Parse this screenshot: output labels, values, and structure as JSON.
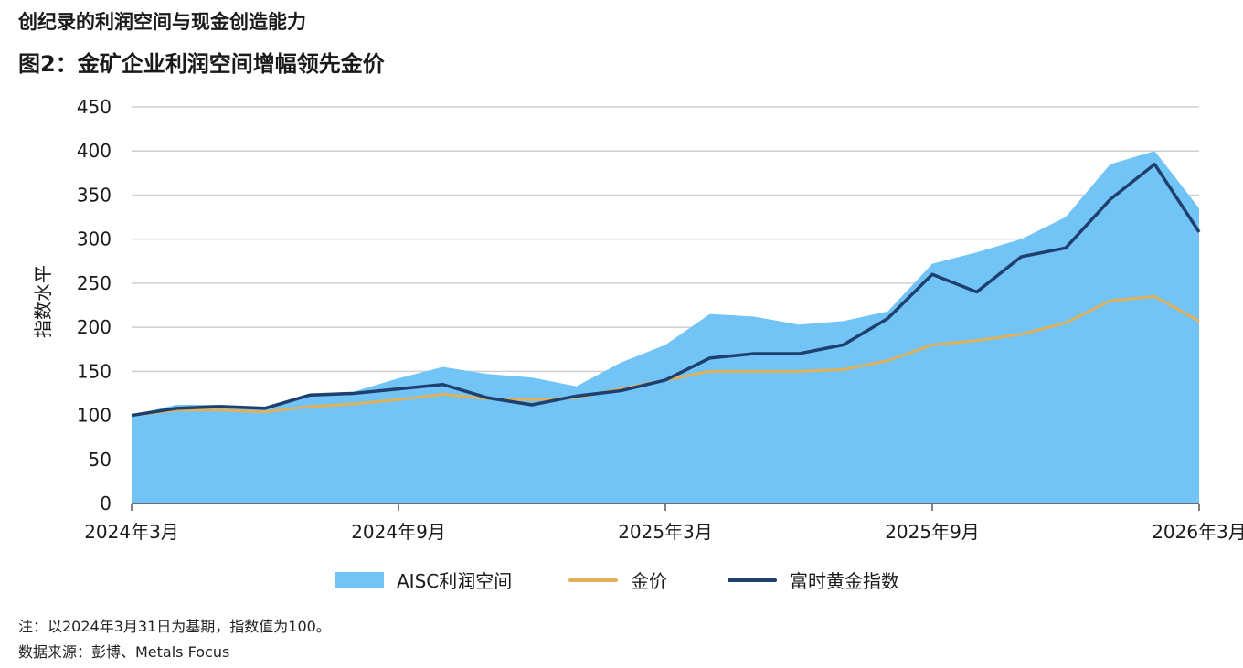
{
  "header": {
    "subtitle": "创纪录的利润空间与现金创造能力",
    "title": "图2：金矿企业利润空间增幅领先金价"
  },
  "notes": {
    "note": "注：以2024年3月31日为基期，指数值为100。",
    "source": "数据来源：彭博、Metals Focus"
  },
  "legend": {
    "area_label": "AISC利润空间",
    "gold_label": "金价",
    "index_label": "富时黄金指数"
  },
  "colors": {
    "area": "#72c4f6",
    "gold": "#e0b15a",
    "index": "#1f3f6e",
    "grid": "#cfcfcf"
  },
  "chart_data": {
    "type": "area",
    "ylabel": "指数水平",
    "ylim": [
      0,
      450
    ],
    "yticks": [
      0,
      50,
      100,
      150,
      200,
      250,
      300,
      350,
      400,
      450
    ],
    "x_tick_labels": [
      "2024年3月",
      "2024年9月",
      "2025年3月",
      "2025年9月",
      "2026年3月"
    ],
    "x": [
      "2024-03",
      "2024-04",
      "2024-05",
      "2024-06",
      "2024-07",
      "2024-08",
      "2024-09",
      "2024-10",
      "2024-11",
      "2024-12",
      "2025-01",
      "2025-02",
      "2025-03",
      "2025-04",
      "2025-05",
      "2025-06",
      "2025-07",
      "2025-08",
      "2025-09",
      "2025-10",
      "2025-11",
      "2025-12",
      "2026-01",
      "2026-02",
      "2026-03"
    ],
    "series": [
      {
        "name": "AISC利润空间",
        "values": [
          100,
          112,
          112,
          110,
          125,
          127,
          142,
          155,
          147,
          143,
          133,
          160,
          180,
          215,
          212,
          203,
          207,
          218,
          272,
          285,
          300,
          325,
          385,
          400,
          335
        ]
      },
      {
        "name": "金价",
        "values": [
          100,
          106,
          106,
          104,
          110,
          113,
          118,
          124,
          119,
          118,
          120,
          130,
          140,
          150,
          150,
          150,
          152,
          162,
          180,
          185,
          192,
          205,
          230,
          235,
          207
        ]
      },
      {
        "name": "富时黄金指数",
        "values": [
          100,
          108,
          110,
          108,
          123,
          125,
          130,
          135,
          120,
          112,
          122,
          128,
          140,
          165,
          170,
          170,
          180,
          210,
          260,
          240,
          280,
          290,
          345,
          385,
          308
        ]
      }
    ]
  }
}
